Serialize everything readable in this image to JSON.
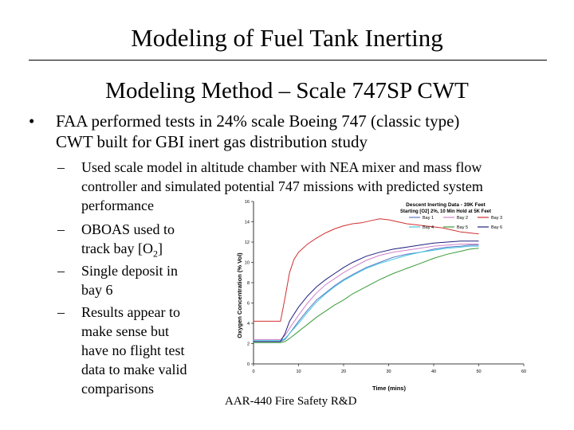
{
  "slide": {
    "title": "Modeling of Fuel Tank Inerting",
    "subtitle": "Modeling Method – Scale 747SP CWT",
    "bullet_main": [
      "FAA performed tests in 24% scale Boeing 747 (classic type)",
      "CWT built for GBI inert gas distribution study"
    ],
    "sub_bullets": [
      [
        "Used scale model in altitude chamber with NEA mixer and mass flow",
        "controller and simulated potential 747 missions with predicted system",
        "performance"
      ],
      [
        "OBOAS used to",
        "track bay [O",
        "2",
        "]"
      ],
      [
        "Single deposit in",
        "bay 6"
      ],
      [
        "Results appear to",
        "make sense but",
        "have no flight test",
        "data to make valid",
        "comparisons"
      ]
    ],
    "footer": "AAR-440 Fire Safety R&D"
  },
  "chart_data": {
    "type": "line",
    "title": "Descent Inerting Data - 39K Feet",
    "subtitle": "Starting [O2] 2%, 10 Min Hold at 5K Feet",
    "xlabel": "Time (mins)",
    "ylabel": "Oxygen Concentration (% Vol)",
    "xlim": [
      0,
      60
    ],
    "ylim": [
      0,
      16
    ],
    "xticks": [
      "0",
      "10",
      "20",
      "30",
      "40",
      "50",
      "60"
    ],
    "yticks": [
      "0",
      "2",
      "4",
      "6",
      "8",
      "10",
      "12",
      "14",
      "16"
    ],
    "grid": false,
    "legend": "top-right",
    "series": [
      {
        "name": "Bay 1",
        "color": "#5a78c8",
        "x": [
          0,
          6,
          7,
          8,
          10,
          12,
          14,
          16,
          18,
          20,
          22,
          25,
          28,
          31,
          34,
          37,
          40,
          43,
          46,
          48,
          50
        ],
        "y": [
          2.2,
          2.2,
          2.4,
          3.0,
          4.2,
          5.3,
          6.3,
          7.0,
          7.7,
          8.3,
          8.8,
          9.5,
          10.0,
          10.5,
          10.8,
          11.0,
          11.3,
          11.5,
          11.6,
          11.7,
          11.7
        ]
      },
      {
        "name": "Bay 2",
        "color": "#d080c8",
        "x": [
          0,
          6,
          7,
          8,
          10,
          12,
          14,
          16,
          18,
          20,
          22,
          25,
          28,
          31,
          34,
          37,
          40,
          43,
          46,
          48,
          50
        ],
        "y": [
          2.4,
          2.4,
          2.8,
          3.5,
          4.8,
          6.0,
          7.0,
          7.8,
          8.4,
          9.0,
          9.5,
          10.2,
          10.7,
          11.0,
          11.2,
          11.4,
          11.6,
          11.7,
          11.8,
          11.8,
          11.8
        ]
      },
      {
        "name": "Bay 3",
        "color": "#d03030",
        "x": [
          0,
          6,
          7,
          8,
          9,
          10,
          12,
          14,
          16,
          18,
          20,
          22,
          24,
          26,
          28,
          30,
          32,
          34,
          36,
          38,
          40,
          42,
          44,
          46,
          48,
          50
        ],
        "y": [
          4.2,
          4.2,
          6.5,
          9.0,
          10.3,
          11.0,
          11.8,
          12.4,
          12.9,
          13.3,
          13.6,
          13.8,
          13.9,
          14.1,
          14.3,
          14.2,
          14.0,
          13.8,
          13.7,
          13.6,
          13.5,
          13.4,
          13.2,
          13.0,
          12.9,
          12.8
        ]
      },
      {
        "name": "Bay 4",
        "color": "#40c8e0",
        "x": [
          0,
          6,
          7,
          8,
          10,
          12,
          14,
          16,
          18,
          20,
          22,
          25,
          28,
          31,
          34,
          37,
          40,
          43,
          46,
          48,
          50
        ],
        "y": [
          2.3,
          2.3,
          2.5,
          3.0,
          4.0,
          5.1,
          6.1,
          6.9,
          7.6,
          8.2,
          8.7,
          9.4,
          9.9,
          10.3,
          10.7,
          11.0,
          11.2,
          11.4,
          11.5,
          11.6,
          11.6
        ]
      },
      {
        "name": "Bay 5",
        "color": "#3a9a3a",
        "x": [
          0,
          6,
          7,
          8,
          10,
          12,
          14,
          16,
          18,
          20,
          22,
          25,
          28,
          31,
          34,
          37,
          40,
          43,
          46,
          48,
          50
        ],
        "y": [
          2.1,
          2.1,
          2.2,
          2.5,
          3.2,
          3.9,
          4.6,
          5.2,
          5.8,
          6.3,
          6.9,
          7.6,
          8.3,
          8.9,
          9.4,
          9.9,
          10.4,
          10.8,
          11.1,
          11.3,
          11.4
        ]
      },
      {
        "name": "Bay 6",
        "color": "#202080",
        "x": [
          0,
          6,
          7,
          8,
          10,
          12,
          14,
          16,
          18,
          20,
          22,
          25,
          28,
          31,
          34,
          37,
          40,
          43,
          46,
          48,
          50
        ],
        "y": [
          2.2,
          2.2,
          3.0,
          4.2,
          5.6,
          6.7,
          7.6,
          8.3,
          8.9,
          9.5,
          10.0,
          10.6,
          11.0,
          11.3,
          11.5,
          11.7,
          11.9,
          12.0,
          12.1,
          12.1,
          12.1
        ]
      }
    ]
  }
}
